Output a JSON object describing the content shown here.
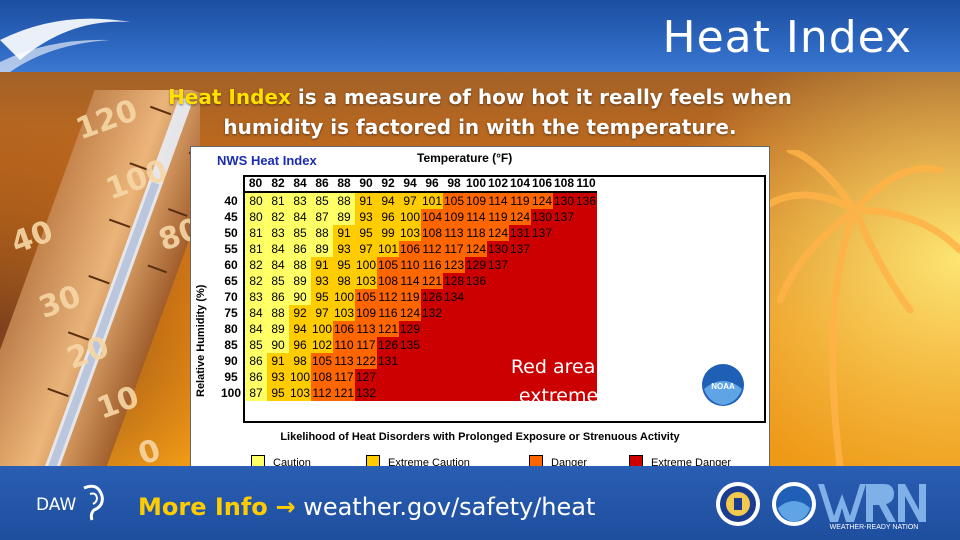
{
  "title": "Heat Index",
  "subtitle": {
    "highlight": "Heat Index",
    "line1_rest": " is a measure of how hot it really feels when",
    "line2": "humidity is factored in with the temperature."
  },
  "chart": {
    "panel_title": "NWS Heat Index",
    "temperature_label": "Temperature (°F)",
    "humidity_label": "Relative Humidity (%)",
    "columns": [
      "80",
      "82",
      "84",
      "86",
      "88",
      "90",
      "92",
      "94",
      "96",
      "98",
      "100",
      "102",
      "104",
      "106",
      "108",
      "110"
    ],
    "rows": [
      {
        "rh": "40",
        "values": [
          "80",
          "81",
          "83",
          "85",
          "88",
          "91",
          "94",
          "97",
          "101",
          "105",
          "109",
          "114",
          "119",
          "124",
          "130",
          "136"
        ]
      },
      {
        "rh": "45",
        "values": [
          "80",
          "82",
          "84",
          "87",
          "89",
          "93",
          "96",
          "100",
          "104",
          "109",
          "114",
          "119",
          "124",
          "130",
          "137",
          ""
        ]
      },
      {
        "rh": "50",
        "values": [
          "81",
          "83",
          "85",
          "88",
          "91",
          "95",
          "99",
          "103",
          "108",
          "113",
          "118",
          "124",
          "131",
          "137",
          "",
          ""
        ]
      },
      {
        "rh": "55",
        "values": [
          "81",
          "84",
          "86",
          "89",
          "93",
          "97",
          "101",
          "106",
          "112",
          "117",
          "124",
          "130",
          "137",
          "",
          "",
          ""
        ]
      },
      {
        "rh": "60",
        "values": [
          "82",
          "84",
          "88",
          "91",
          "95",
          "100",
          "105",
          "110",
          "116",
          "123",
          "129",
          "137",
          "",
          "",
          "",
          ""
        ]
      },
      {
        "rh": "65",
        "values": [
          "82",
          "85",
          "89",
          "93",
          "98",
          "103",
          "108",
          "114",
          "121",
          "128",
          "136",
          "",
          "",
          "",
          "",
          ""
        ]
      },
      {
        "rh": "70",
        "values": [
          "83",
          "86",
          "90",
          "95",
          "100",
          "105",
          "112",
          "119",
          "126",
          "134",
          "",
          "",
          "",
          "",
          "",
          ""
        ]
      },
      {
        "rh": "75",
        "values": [
          "84",
          "88",
          "92",
          "97",
          "103",
          "109",
          "116",
          "124",
          "132",
          "",
          "",
          "",
          "",
          "",
          "",
          ""
        ]
      },
      {
        "rh": "80",
        "values": [
          "84",
          "89",
          "94",
          "100",
          "106",
          "113",
          "121",
          "129",
          "",
          "",
          "",
          "",
          "",
          "",
          "",
          ""
        ]
      },
      {
        "rh": "85",
        "values": [
          "85",
          "90",
          "96",
          "102",
          "110",
          "117",
          "126",
          "135",
          "",
          "",
          "",
          "",
          "",
          "",
          "",
          ""
        ]
      },
      {
        "rh": "90",
        "values": [
          "86",
          "91",
          "98",
          "105",
          "113",
          "122",
          "131",
          "",
          "",
          "",
          "",
          "",
          "",
          "",
          "",
          ""
        ]
      },
      {
        "rh": "95",
        "values": [
          "86",
          "93",
          "100",
          "108",
          "117",
          "127",
          "",
          "",
          "",
          "",
          "",
          "",
          "",
          "",
          "",
          ""
        ]
      },
      {
        "rh": "100",
        "values": [
          "87",
          "95",
          "103",
          "112",
          "121",
          "132",
          "",
          "",
          "",
          "",
          "",
          "",
          "",
          "",
          "",
          ""
        ]
      }
    ],
    "danger_note": {
      "line1": "Red area indicates",
      "line2": "extreme danger!"
    },
    "likelihood": "Likelihood of Heat Disorders with Prolonged Exposure or Strenuous Activity",
    "legend": [
      {
        "label": "Caution",
        "color": "#ffff66"
      },
      {
        "label": "Extreme Caution",
        "color": "#ffcc00"
      },
      {
        "label": "Danger",
        "color": "#ff6600"
      },
      {
        "label": "Extreme Danger",
        "color": "#cc0000"
      }
    ]
  },
  "footer": {
    "more_info_label": "More Info",
    "arrow": "→",
    "url": "weather.gov/safety/heat",
    "daw_logo_text": "DAW",
    "noaa_logo_text": "NOAA",
    "wrn_caption": "WEATHER-READY NATION"
  },
  "thermometer_labels": [
    "120",
    "100",
    "80",
    "40",
    "30",
    "20",
    "10",
    "0"
  ],
  "colors": {
    "header_blue": "#1c4fa0",
    "highlight_yellow": "#ffe100",
    "caution": "#ffff66",
    "extreme_caution": "#ffcc00",
    "danger": "#ff6600",
    "extreme_danger": "#cc0000"
  },
  "icons": [
    "thermometer-icon",
    "palm-tree-icon",
    "noaa-logo-icon",
    "daw-ear-logo-icon",
    "doc-seal-icon",
    "wrn-logo-icon"
  ]
}
